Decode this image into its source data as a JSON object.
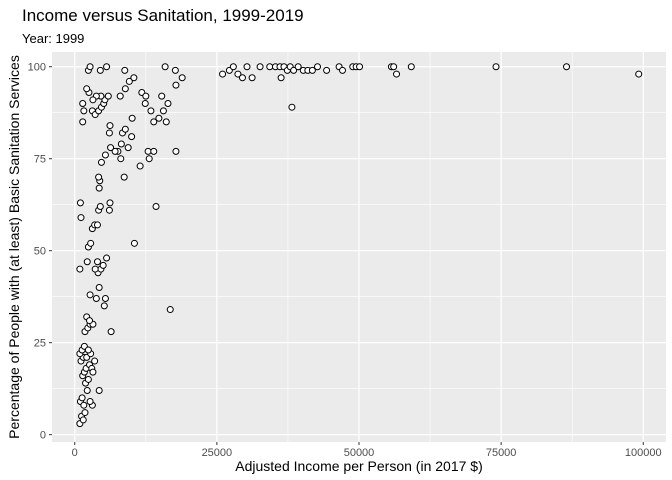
{
  "chart_data": {
    "type": "scatter",
    "title": "Income versus Sanitation, 1999-2019",
    "subtitle": "Year: 1999",
    "xlabel": "Adjusted Income per Person (in 2017 $)",
    "ylabel": "Percentage of People with (at least) Basic Sanitation Services",
    "xlim": [
      -4000,
      104000
    ],
    "ylim": [
      -2,
      104
    ],
    "x_ticks": [
      0,
      25000,
      50000,
      75000,
      100000
    ],
    "x_tick_labels": [
      "0",
      "25000",
      "50000",
      "75000",
      "100000"
    ],
    "y_ticks": [
      0,
      25,
      50,
      75,
      100
    ],
    "y_tick_labels": [
      "0",
      "25",
      "50",
      "75",
      "100"
    ],
    "grid": true,
    "colors": {
      "panel_bg": "#ebebeb",
      "grid_major": "#ffffff",
      "point_fill": "#ffffff",
      "point_stroke": "#000000"
    },
    "points": [
      [
        900,
        3
      ],
      [
        1200,
        5
      ],
      [
        1500,
        4
      ],
      [
        1800,
        6
      ],
      [
        1000,
        9
      ],
      [
        1300,
        10
      ],
      [
        1600,
        8
      ],
      [
        2200,
        12
      ],
      [
        1900,
        14
      ],
      [
        2400,
        15
      ],
      [
        1400,
        16
      ],
      [
        1700,
        17
      ],
      [
        2000,
        18
      ],
      [
        2600,
        19
      ],
      [
        3000,
        18
      ],
      [
        3200,
        17
      ],
      [
        1100,
        20
      ],
      [
        1500,
        21
      ],
      [
        2100,
        21
      ],
      [
        2800,
        22
      ],
      [
        900,
        22
      ],
      [
        1300,
        23
      ],
      [
        1700,
        24
      ],
      [
        2400,
        23
      ],
      [
        4300,
        12
      ],
      [
        3500,
        20
      ],
      [
        3100,
        8
      ],
      [
        2700,
        9
      ],
      [
        1800,
        28
      ],
      [
        2300,
        29
      ],
      [
        2700,
        30
      ],
      [
        3200,
        30
      ],
      [
        2100,
        32
      ],
      [
        2600,
        31
      ],
      [
        6400,
        28
      ],
      [
        2700,
        38
      ],
      [
        3800,
        37
      ],
      [
        4300,
        40
      ],
      [
        5200,
        35
      ],
      [
        5400,
        37
      ],
      [
        4100,
        44
      ],
      [
        4600,
        45
      ],
      [
        5000,
        46
      ],
      [
        5600,
        48
      ],
      [
        4000,
        47
      ],
      [
        900,
        45
      ],
      [
        2200,
        47
      ],
      [
        3600,
        45
      ],
      [
        2400,
        51
      ],
      [
        2800,
        52
      ],
      [
        10500,
        52
      ],
      [
        16800,
        34
      ],
      [
        3100,
        56
      ],
      [
        3500,
        57
      ],
      [
        4000,
        57
      ],
      [
        1100,
        59
      ],
      [
        1000,
        63
      ],
      [
        4200,
        61
      ],
      [
        4500,
        62
      ],
      [
        6100,
        61
      ],
      [
        6200,
        63
      ],
      [
        4300,
        67
      ],
      [
        4400,
        69
      ],
      [
        4200,
        70
      ],
      [
        14300,
        62
      ],
      [
        4700,
        74
      ],
      [
        5400,
        76
      ],
      [
        7600,
        77
      ],
      [
        8200,
        79
      ],
      [
        8100,
        75
      ],
      [
        9400,
        78
      ],
      [
        10000,
        81
      ],
      [
        11500,
        73
      ],
      [
        8700,
        70
      ],
      [
        7100,
        77
      ],
      [
        6100,
        82
      ],
      [
        6200,
        84
      ],
      [
        8400,
        82
      ],
      [
        8900,
        83
      ],
      [
        10100,
        86
      ],
      [
        12900,
        77
      ],
      [
        13100,
        75
      ],
      [
        13900,
        77
      ],
      [
        17800,
        77
      ],
      [
        3100,
        88
      ],
      [
        3600,
        87
      ],
      [
        4200,
        88
      ],
      [
        4700,
        89
      ],
      [
        5100,
        90
      ],
      [
        5300,
        91
      ],
      [
        4600,
        92
      ],
      [
        3800,
        92
      ],
      [
        3200,
        91
      ],
      [
        2500,
        93
      ],
      [
        1400,
        85
      ],
      [
        1400,
        90
      ],
      [
        1600,
        88
      ],
      [
        5900,
        92
      ],
      [
        8000,
        92
      ],
      [
        8900,
        94
      ],
      [
        9600,
        96
      ],
      [
        10400,
        97
      ],
      [
        11800,
        93
      ],
      [
        12500,
        92
      ],
      [
        13400,
        88
      ],
      [
        13900,
        85
      ],
      [
        14800,
        86
      ],
      [
        15600,
        88
      ],
      [
        16400,
        90
      ],
      [
        17800,
        95
      ],
      [
        18900,
        97
      ],
      [
        15300,
        92
      ],
      [
        16100,
        85
      ],
      [
        2100,
        94
      ],
      [
        2400,
        99
      ],
      [
        2700,
        100
      ],
      [
        4500,
        99
      ],
      [
        5600,
        100
      ],
      [
        8800,
        99
      ],
      [
        15900,
        100
      ],
      [
        17700,
        99
      ],
      [
        12400,
        90
      ],
      [
        6300,
        78
      ],
      [
        26000,
        98
      ],
      [
        27200,
        99
      ],
      [
        27900,
        100
      ],
      [
        28700,
        98
      ],
      [
        29500,
        97
      ],
      [
        30300,
        100
      ],
      [
        31200,
        97
      ],
      [
        32600,
        100
      ],
      [
        34300,
        100
      ],
      [
        35300,
        100
      ],
      [
        36100,
        100
      ],
      [
        36800,
        100
      ],
      [
        37400,
        99
      ],
      [
        37900,
        100
      ],
      [
        38500,
        99
      ],
      [
        39300,
        100
      ],
      [
        40200,
        99
      ],
      [
        41000,
        99
      ],
      [
        41800,
        99
      ],
      [
        42700,
        100
      ],
      [
        38200,
        89
      ],
      [
        36300,
        97
      ],
      [
        46500,
        100
      ],
      [
        47100,
        99
      ],
      [
        48900,
        100
      ],
      [
        49500,
        100
      ],
      [
        50100,
        100
      ],
      [
        55700,
        100
      ],
      [
        56100,
        100
      ],
      [
        56600,
        98
      ],
      [
        59200,
        100
      ],
      [
        74100,
        100
      ],
      [
        86500,
        100
      ],
      [
        99200,
        98
      ],
      [
        44300,
        99
      ]
    ]
  }
}
